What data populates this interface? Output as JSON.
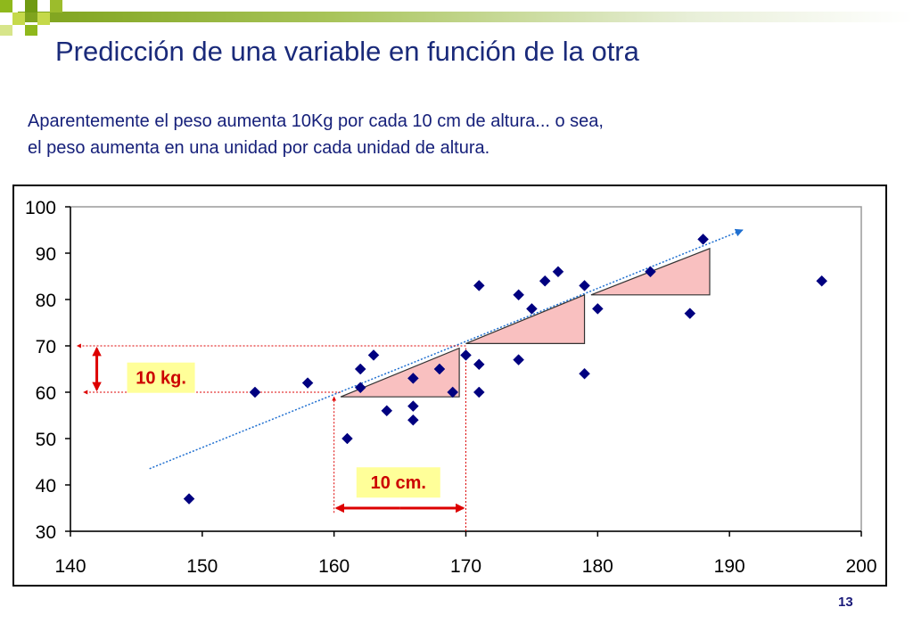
{
  "slide": {
    "title": "Predicción de una variable en función de la otra",
    "subtitle_line1": "Aparentemente el peso aumenta 10Kg por cada 10 cm de altura... o sea,",
    "subtitle_line2": "el peso aumenta en una unidad por cada unidad de altura.",
    "page_number": "13"
  },
  "colors": {
    "title": "#1a2a7a",
    "marker": "#000080",
    "trend_line": "#1f6fd0",
    "triangle_fill": "#f9c0c0",
    "triangle_stroke": "#333333",
    "arrow": "#dd0000",
    "label_bg": "#ffff99",
    "label_text": "#cc0000",
    "bar_green": "#8fb81c"
  },
  "chart_data": {
    "type": "scatter",
    "title": "",
    "xlabel": "",
    "ylabel": "",
    "xlim": [
      140,
      200
    ],
    "ylim": [
      30,
      100
    ],
    "xticks": [
      140,
      150,
      160,
      170,
      180,
      190,
      200
    ],
    "yticks": [
      30,
      40,
      50,
      60,
      70,
      80,
      90,
      100
    ],
    "grid": false,
    "marker": "diamond",
    "points": [
      [
        149,
        37
      ],
      [
        154,
        60
      ],
      [
        158,
        62
      ],
      [
        161,
        50
      ],
      [
        162,
        61
      ],
      [
        162,
        65
      ],
      [
        163,
        68
      ],
      [
        164,
        56
      ],
      [
        166,
        54
      ],
      [
        166,
        57
      ],
      [
        166,
        63
      ],
      [
        168,
        65
      ],
      [
        169,
        60
      ],
      [
        170,
        68
      ],
      [
        171,
        83
      ],
      [
        171,
        66
      ],
      [
        171,
        60
      ],
      [
        174,
        81
      ],
      [
        174,
        67
      ],
      [
        175,
        78
      ],
      [
        176,
        84
      ],
      [
        177,
        86
      ],
      [
        179,
        83
      ],
      [
        179,
        64
      ],
      [
        180,
        78
      ],
      [
        184,
        86
      ],
      [
        187,
        77
      ],
      [
        188,
        93
      ],
      [
        197,
        84
      ]
    ],
    "trend_line": {
      "x_start": 146,
      "y_start": 43.5,
      "x_end": 191,
      "y_end": 95
    },
    "triangles": [
      {
        "x1": 160.5,
        "x2": 169.5,
        "y_base": 59,
        "y_top": 69.5
      },
      {
        "x1": 170,
        "x2": 179,
        "y_base": 70.5,
        "y_top": 81
      },
      {
        "x1": 179.5,
        "x2": 188.5,
        "y_base": 81,
        "y_top": 91
      }
    ],
    "annotations": {
      "kg_label": "10 kg.",
      "cm_label": "10 cm.",
      "kg_from": 60,
      "kg_to": 70,
      "cm_from": 160,
      "cm_to": 170
    }
  }
}
